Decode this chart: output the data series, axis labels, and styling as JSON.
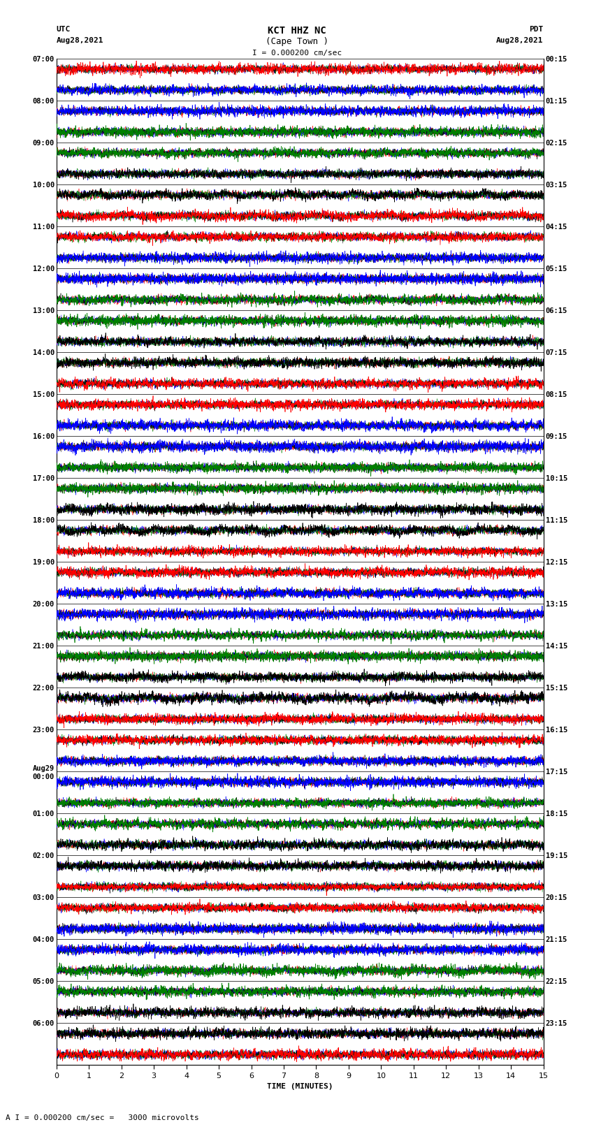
{
  "title_line1": "KCT HHZ NC",
  "title_line2": "(Cape Town )",
  "scale_label": "I = 0.000200 cm/sec",
  "left_label_top": "UTC",
  "left_label_date": "Aug28,2021",
  "right_label_top": "PDT",
  "right_label_date": "Aug28,2021",
  "bottom_label": "TIME (MINUTES)",
  "bottom_note": "A I = 0.000200 cm/sec =   3000 microvolts",
  "utc_times_left": [
    "07:00",
    "08:00",
    "09:00",
    "10:00",
    "11:00",
    "12:00",
    "13:00",
    "14:00",
    "15:00",
    "16:00",
    "17:00",
    "18:00",
    "19:00",
    "20:00",
    "21:00",
    "22:00",
    "23:00",
    "Aug29\n00:00",
    "01:00",
    "02:00",
    "03:00",
    "04:00",
    "05:00",
    "06:00"
  ],
  "pdt_times_right": [
    "00:15",
    "01:15",
    "02:15",
    "03:15",
    "04:15",
    "05:15",
    "06:15",
    "07:15",
    "08:15",
    "09:15",
    "10:15",
    "11:15",
    "12:15",
    "13:15",
    "14:15",
    "15:15",
    "16:15",
    "17:15",
    "18:15",
    "19:15",
    "20:15",
    "21:15",
    "22:15",
    "23:15"
  ],
  "n_rows": 24,
  "display_minutes": 15,
  "bg_color": "white",
  "fig_width": 8.5,
  "fig_height": 16.13,
  "dpi": 100,
  "row_top_colors": [
    "red",
    "blue",
    "green",
    "black",
    "red",
    "blue",
    "green",
    "black",
    "red",
    "blue",
    "green",
    "black",
    "red",
    "blue",
    "green",
    "black",
    "red",
    "blue",
    "green",
    "black",
    "red",
    "blue",
    "green",
    "black"
  ],
  "row_bottom_colors": [
    "blue",
    "green",
    "black",
    "red",
    "blue",
    "green",
    "black",
    "red",
    "blue",
    "green",
    "black",
    "red",
    "blue",
    "green",
    "black",
    "red",
    "blue",
    "green",
    "black",
    "red",
    "blue",
    "green",
    "black",
    "red"
  ]
}
